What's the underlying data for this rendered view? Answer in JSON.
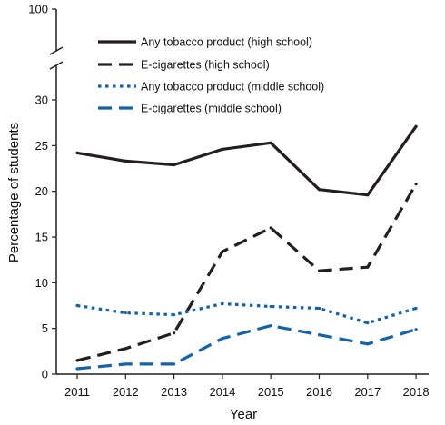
{
  "chart_data": {
    "type": "line",
    "xlabel": "Year",
    "ylabel": "Percentage of students",
    "x": [
      "2011",
      "2012",
      "2013",
      "2014",
      "2015",
      "2016",
      "2017",
      "2018"
    ],
    "ylim": [
      0,
      30
    ],
    "yticks": [
      "0",
      "5",
      "10",
      "15",
      "20",
      "25",
      "30"
    ],
    "ybreak_tick": "100",
    "grid": false,
    "legend_position": "top",
    "series": [
      {
        "name": "Any tobacco product (high school)",
        "style": "solid",
        "color": "#231f20",
        "values": [
          24.2,
          23.3,
          22.9,
          24.6,
          25.3,
          20.2,
          19.6,
          27.1
        ]
      },
      {
        "name": "E-cigarettes (high school)",
        "style": "dashed",
        "color": "#231f20",
        "values": [
          1.5,
          2.8,
          4.5,
          13.4,
          16.0,
          11.3,
          11.7,
          20.8
        ]
      },
      {
        "name": "Any tobacco product (middle school)",
        "style": "dotted",
        "color": "#1462a8",
        "values": [
          7.5,
          6.7,
          6.5,
          7.7,
          7.4,
          7.2,
          5.6,
          7.2
        ]
      },
      {
        "name": "E-cigarettes (middle school)",
        "style": "dashed",
        "color": "#1462a8",
        "values": [
          0.6,
          1.1,
          1.1,
          3.9,
          5.3,
          4.3,
          3.3,
          4.9
        ]
      }
    ]
  }
}
